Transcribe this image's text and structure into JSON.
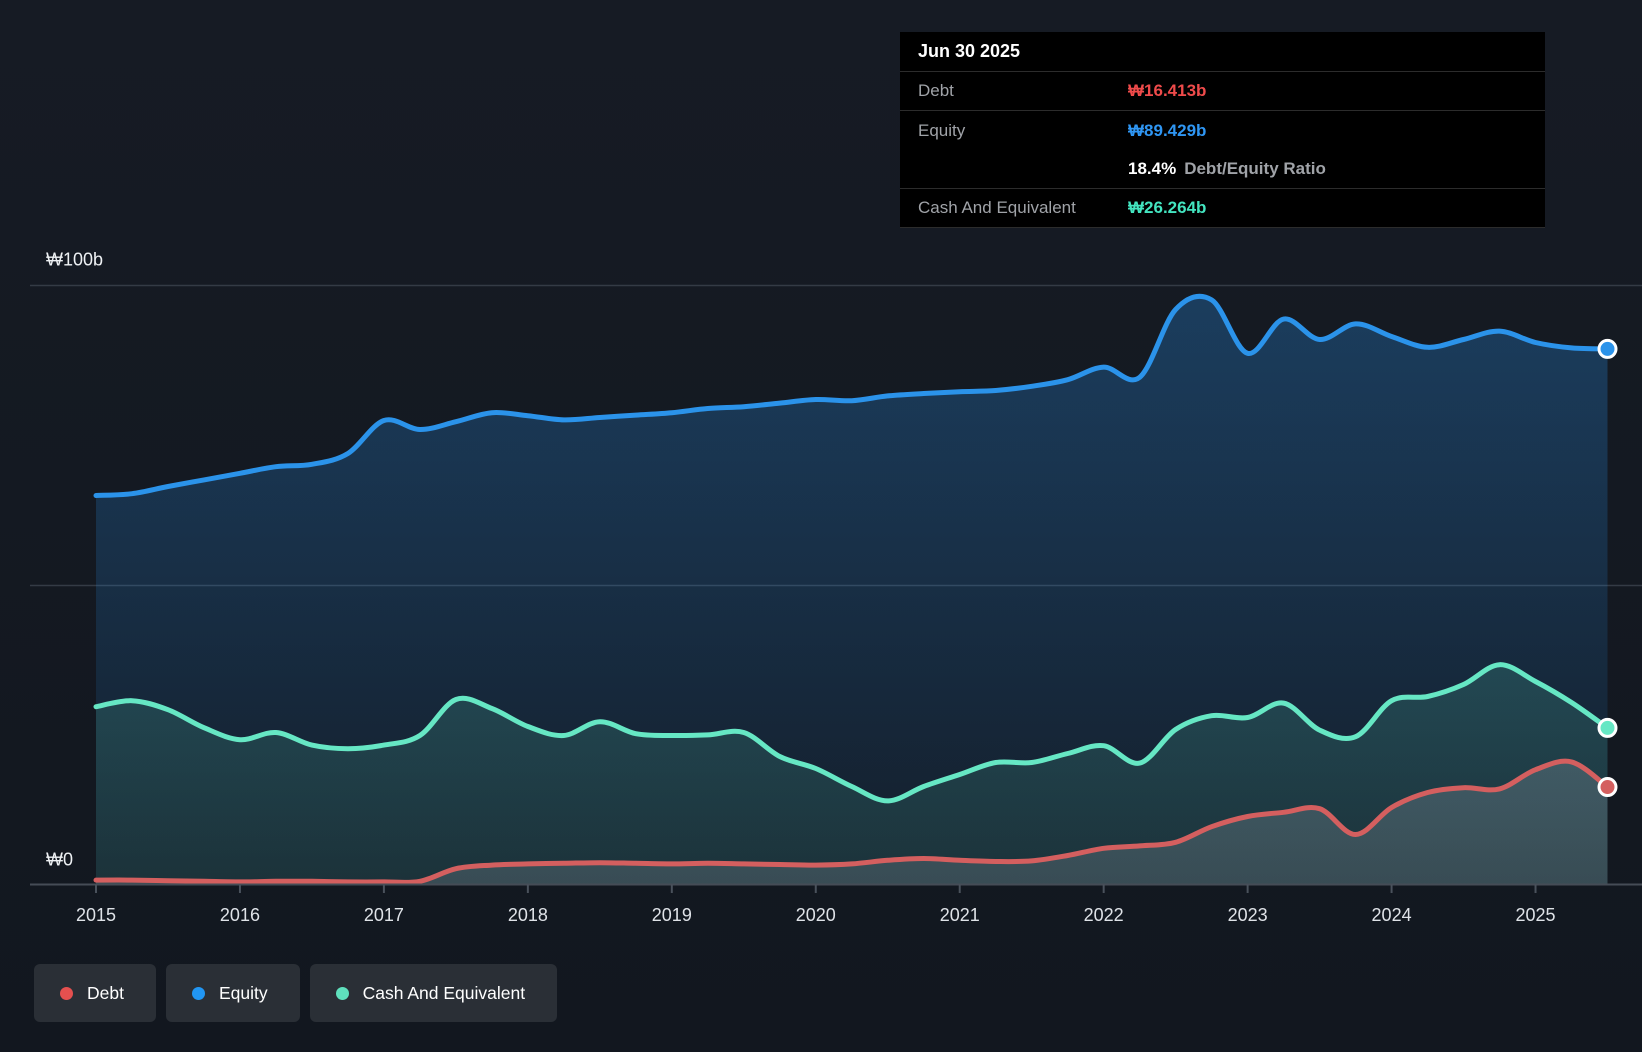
{
  "tooltip": {
    "date": "Jun 30 2025",
    "debt": {
      "label": "Debt",
      "value": "₩16.413b",
      "color": "#ef4b4b"
    },
    "equity": {
      "label": "Equity",
      "value": "₩89.429b",
      "color": "#2f96f3"
    },
    "ratio": {
      "value": "18.4%",
      "label": "Debt/Equity Ratio"
    },
    "cash": {
      "label": "Cash And Equivalent",
      "value": "₩26.264b",
      "color": "#43e5c0"
    }
  },
  "legend": {
    "items": [
      {
        "label": "Debt",
        "color": "#e5504f"
      },
      {
        "label": "Equity",
        "color": "#2196f3"
      },
      {
        "label": "Cash And Equivalent",
        "color": "#5fe0bd"
      }
    ]
  },
  "colors": {
    "background": "#151a23",
    "gridline": "#343b45",
    "axis_line": "#454c56",
    "tick": "#4a525c",
    "year_label": "#dfe3e8",
    "y_label": "#eef1f4"
  },
  "chart_data": {
    "type": "area",
    "title": "",
    "xlabel": "",
    "ylabel": "",
    "currency": "₩",
    "xlim": [
      2015,
      2025.5
    ],
    "ylim": [
      0,
      100
    ],
    "grid": true,
    "gridline_values": [
      100,
      50
    ],
    "legend_position": "bottom-left",
    "end_markers": true,
    "x_ticks": [
      2015,
      2016,
      2017,
      2018,
      2019,
      2020,
      2021,
      2022,
      2023,
      2024,
      2025
    ],
    "y_ticks": [
      {
        "value": 100,
        "label": "₩100b"
      },
      {
        "value": 0,
        "label": "₩0"
      }
    ],
    "x": [
      2015,
      2015.25,
      2015.5,
      2015.75,
      2016,
      2016.25,
      2016.5,
      2016.75,
      2017,
      2017.25,
      2017.5,
      2017.75,
      2018,
      2018.25,
      2018.5,
      2018.75,
      2019,
      2019.25,
      2019.5,
      2019.75,
      2020,
      2020.25,
      2020.5,
      2020.75,
      2021,
      2021.25,
      2021.5,
      2021.75,
      2022,
      2022.25,
      2022.5,
      2022.75,
      2023,
      2023.25,
      2023.5,
      2023.75,
      2024,
      2024.25,
      2024.5,
      2024.75,
      2025,
      2025.25,
      2025.5
    ],
    "series": [
      {
        "name": "Equity",
        "color": "#2b93ea",
        "fill_from": "rgba(41,145,234,0.30)",
        "fill_to": "rgba(41,145,234,0.05)",
        "end_value": 89.429,
        "values": [
          65.0,
          65.3,
          66.5,
          67.6,
          68.7,
          69.8,
          70.2,
          72.0,
          77.5,
          76.0,
          77.3,
          78.8,
          78.3,
          77.6,
          78.0,
          78.4,
          78.8,
          79.5,
          79.8,
          80.4,
          81.0,
          80.8,
          81.6,
          82.0,
          82.3,
          82.5,
          83.2,
          84.3,
          86.4,
          84.7,
          96.0,
          97.6,
          88.7,
          94.4,
          91.0,
          93.6,
          91.5,
          89.7,
          91.0,
          92.4,
          90.5,
          89.6,
          89.429
        ]
      },
      {
        "name": "Cash And Equivalent",
        "color": "#66e7c4",
        "fill_from": "rgba(96,226,190,0.27)",
        "fill_to": "rgba(96,226,190,0.10)",
        "end_value": 26.264,
        "values": [
          29.8,
          30.8,
          29.3,
          26.3,
          24.3,
          25.5,
          23.4,
          22.8,
          23.4,
          25.0,
          31.0,
          29.5,
          26.5,
          25.0,
          27.3,
          25.3,
          25.0,
          25.1,
          25.5,
          21.5,
          19.5,
          16.5,
          14.1,
          16.5,
          18.5,
          20.5,
          20.5,
          22.0,
          23.3,
          20.4,
          26.0,
          28.3,
          28.0,
          30.4,
          25.9,
          24.8,
          30.8,
          31.5,
          33.5,
          36.8,
          34.0,
          30.5,
          26.264
        ]
      },
      {
        "name": "Debt",
        "color": "#d45f5f",
        "fill_from": "rgba(205,212,224,0.28)",
        "fill_to": "rgba(205,212,224,0.16)",
        "end_value": 16.413,
        "values": [
          0.9,
          0.9,
          0.8,
          0.7,
          0.6,
          0.7,
          0.7,
          0.6,
          0.6,
          0.7,
          2.8,
          3.4,
          3.6,
          3.7,
          3.8,
          3.7,
          3.6,
          3.7,
          3.6,
          3.5,
          3.4,
          3.6,
          4.2,
          4.5,
          4.2,
          4.0,
          4.1,
          5.0,
          6.2,
          6.6,
          7.2,
          9.8,
          11.5,
          12.2,
          12.8,
          8.5,
          13.0,
          15.5,
          16.3,
          16.1,
          19.3,
          20.6,
          16.413
        ]
      }
    ]
  }
}
